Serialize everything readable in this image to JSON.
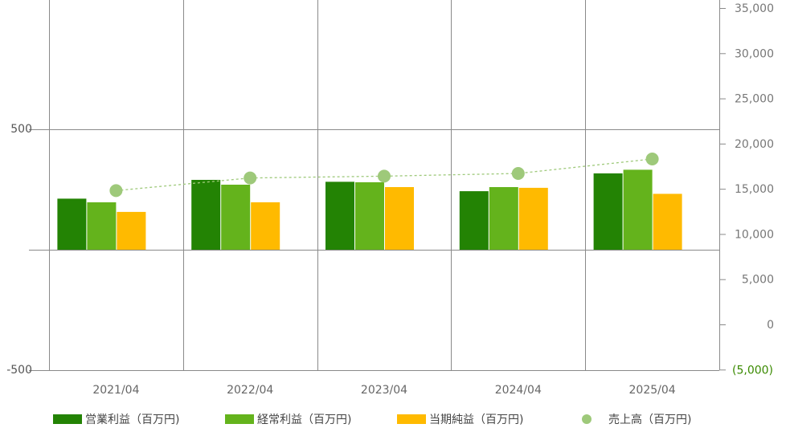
{
  "chart_data": {
    "type": "bar",
    "categories": [
      "2021/04",
      "2022/04",
      "2023/04",
      "2024/04",
      "2025/04"
    ],
    "series": [
      {
        "name": "営業利益（百万円)",
        "kind": "bar",
        "axis": "left",
        "color": "#238304",
        "values": [
          212,
          290,
          282,
          243,
          317
        ]
      },
      {
        "name": "経常利益（百万円)",
        "kind": "bar",
        "axis": "left",
        "color": "#64b31c",
        "values": [
          197,
          270,
          280,
          260,
          332
        ]
      },
      {
        "name": "当期純益（百万円)",
        "kind": "bar",
        "axis": "left",
        "color": "#ffba00",
        "values": [
          157,
          197,
          260,
          257,
          232
        ]
      },
      {
        "name": "売上高（百万円)",
        "kind": "line-points",
        "axis": "right",
        "color": "#9ec97a",
        "values": [
          14800,
          16200,
          16400,
          16700,
          18300
        ]
      }
    ],
    "left_axis": {
      "ticks": [
        500,
        -500
      ],
      "tick_labels": [
        "500",
        "-500"
      ],
      "range": [
        -500,
        500
      ]
    },
    "right_axis": {
      "ticks": [
        35000,
        30000,
        25000,
        20000,
        15000,
        10000,
        5000,
        0,
        -5000
      ],
      "tick_labels": [
        "35,000",
        "30,000",
        "25,000",
        "20,000",
        "15,000",
        "10,000",
        "5,000",
        "0",
        "(5,000)"
      ],
      "range": [
        -5000,
        35000
      ],
      "negative_label_color": "#3a8a00"
    },
    "grid": true,
    "legend_position": "bottom"
  }
}
